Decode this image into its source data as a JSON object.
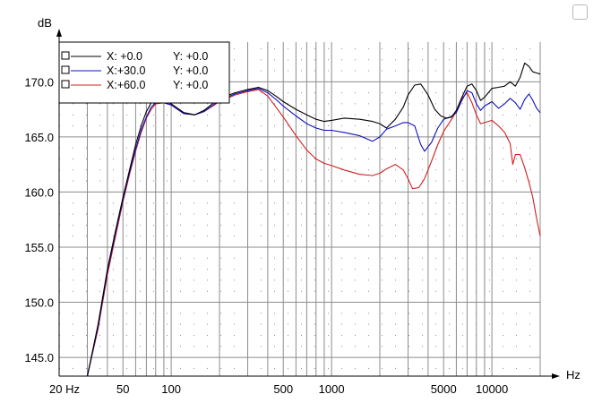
{
  "chart_data": {
    "type": "line",
    "title": "",
    "xlabel": "Hz",
    "ylabel": "dB",
    "x_scale": "log",
    "xlim": [
      20,
      20000
    ],
    "ylim": [
      143.3,
      173.6
    ],
    "grid": true,
    "legend_position": "top-left",
    "x_tick_labels": [
      {
        "value": 20,
        "label": "20 Hz"
      },
      {
        "value": 50,
        "label": "50"
      },
      {
        "value": 100,
        "label": "100"
      },
      {
        "value": 500,
        "label": "500"
      },
      {
        "value": 1000,
        "label": "1000"
      },
      {
        "value": 5000,
        "label": "5000"
      },
      {
        "value": 10000,
        "label": "10000"
      }
    ],
    "y_tick_labels": [
      {
        "value": 145,
        "label": "145.0"
      },
      {
        "value": 150,
        "label": "150.0"
      },
      {
        "value": 155,
        "label": "155.0"
      },
      {
        "value": 160,
        "label": "160.0"
      },
      {
        "value": 165,
        "label": "165.0"
      },
      {
        "value": 170,
        "label": "170.0"
      }
    ],
    "series": [
      {
        "name": "X:  +0.0",
        "y_label": "Y:  +0.0",
        "color": "#000000",
        "points": [
          [
            30,
            143.3
          ],
          [
            35,
            148
          ],
          [
            40,
            153
          ],
          [
            45,
            156.5
          ],
          [
            50,
            159.5
          ],
          [
            55,
            162
          ],
          [
            60,
            164.3
          ],
          [
            65,
            166
          ],
          [
            70,
            167.3
          ],
          [
            75,
            168.1
          ],
          [
            80,
            168.4
          ],
          [
            90,
            168.3
          ],
          [
            100,
            168.0
          ],
          [
            120,
            167.2
          ],
          [
            140,
            167.0
          ],
          [
            160,
            167.4
          ],
          [
            200,
            168.5
          ],
          [
            250,
            169.0
          ],
          [
            300,
            169.3
          ],
          [
            350,
            169.5
          ],
          [
            400,
            169.2
          ],
          [
            450,
            168.7
          ],
          [
            500,
            168.2
          ],
          [
            600,
            167.5
          ],
          [
            700,
            167.0
          ],
          [
            800,
            166.6
          ],
          [
            900,
            166.4
          ],
          [
            1000,
            166.5
          ],
          [
            1200,
            166.7
          ],
          [
            1500,
            166.6
          ],
          [
            1800,
            166.4
          ],
          [
            2000,
            166.2
          ],
          [
            2200,
            165.8
          ],
          [
            2500,
            166.6
          ],
          [
            2800,
            167.7
          ],
          [
            3000,
            168.8
          ],
          [
            3300,
            169.7
          ],
          [
            3600,
            169.8
          ],
          [
            4000,
            168.8
          ],
          [
            4400,
            167.5
          ],
          [
            4800,
            166.9
          ],
          [
            5200,
            166.7
          ],
          [
            5600,
            166.8
          ],
          [
            6000,
            167.4
          ],
          [
            6500,
            168.6
          ],
          [
            7000,
            169.6
          ],
          [
            7500,
            169.8
          ],
          [
            8000,
            169.2
          ],
          [
            8500,
            168.3
          ],
          [
            9000,
            168.6
          ],
          [
            10000,
            169.4
          ],
          [
            11000,
            169.5
          ],
          [
            12000,
            169.6
          ],
          [
            13000,
            170.0
          ],
          [
            14000,
            169.6
          ],
          [
            15000,
            170.4
          ],
          [
            16000,
            171.7
          ],
          [
            17000,
            171.4
          ],
          [
            18000,
            170.9
          ],
          [
            19000,
            170.8
          ],
          [
            20000,
            170.7
          ]
        ]
      },
      {
        "name": "X:+30.0",
        "y_label": "Y:  +0.0",
        "color": "#1010c0",
        "points": [
          [
            30,
            143.3
          ],
          [
            35,
            147.8
          ],
          [
            40,
            152.8
          ],
          [
            45,
            156.3
          ],
          [
            50,
            159.3
          ],
          [
            55,
            161.8
          ],
          [
            60,
            163.9
          ],
          [
            65,
            165.6
          ],
          [
            70,
            166.8
          ],
          [
            75,
            167.7
          ],
          [
            80,
            168.1
          ],
          [
            90,
            168.1
          ],
          [
            100,
            167.9
          ],
          [
            120,
            167.1
          ],
          [
            140,
            167.0
          ],
          [
            160,
            167.3
          ],
          [
            200,
            168.3
          ],
          [
            250,
            168.9
          ],
          [
            300,
            169.2
          ],
          [
            350,
            169.4
          ],
          [
            400,
            169.0
          ],
          [
            450,
            168.4
          ],
          [
            500,
            167.8
          ],
          [
            600,
            166.9
          ],
          [
            700,
            166.2
          ],
          [
            800,
            165.8
          ],
          [
            900,
            165.6
          ],
          [
            1000,
            165.6
          ],
          [
            1200,
            165.4
          ],
          [
            1500,
            165.1
          ],
          [
            1800,
            164.6
          ],
          [
            2000,
            165.0
          ],
          [
            2200,
            165.7
          ],
          [
            2500,
            166.0
          ],
          [
            2800,
            166.3
          ],
          [
            3000,
            166.3
          ],
          [
            3300,
            166.0
          ],
          [
            3600,
            164.3
          ],
          [
            3800,
            163.7
          ],
          [
            4200,
            164.5
          ],
          [
            4600,
            165.8
          ],
          [
            5000,
            166.6
          ],
          [
            5500,
            166.8
          ],
          [
            6000,
            167.2
          ],
          [
            6500,
            168.3
          ],
          [
            7000,
            169.2
          ],
          [
            7500,
            169.0
          ],
          [
            8000,
            168.0
          ],
          [
            8500,
            167.4
          ],
          [
            9000,
            167.8
          ],
          [
            10000,
            168.2
          ],
          [
            11000,
            167.6
          ],
          [
            12000,
            168.0
          ],
          [
            13000,
            168.5
          ],
          [
            14000,
            168.1
          ],
          [
            15000,
            167.5
          ],
          [
            16000,
            168.4
          ],
          [
            17000,
            168.9
          ],
          [
            18000,
            168.3
          ],
          [
            19000,
            167.6
          ],
          [
            20000,
            167.2
          ]
        ]
      },
      {
        "name": "X:+60.0",
        "y_label": "Y:  +0.0",
        "color": "#d02020",
        "points": [
          [
            30,
            143.3
          ],
          [
            35,
            147.6
          ],
          [
            40,
            152.5
          ],
          [
            45,
            156
          ],
          [
            50,
            159.1
          ],
          [
            55,
            161.6
          ],
          [
            60,
            163.7
          ],
          [
            65,
            165.4
          ],
          [
            70,
            166.7
          ],
          [
            75,
            167.5
          ],
          [
            80,
            168.0
          ],
          [
            90,
            168.1
          ],
          [
            100,
            167.9
          ],
          [
            120,
            167.2
          ],
          [
            140,
            167.0
          ],
          [
            160,
            167.3
          ],
          [
            200,
            168.2
          ],
          [
            250,
            168.8
          ],
          [
            300,
            169.1
          ],
          [
            350,
            169.3
          ],
          [
            400,
            168.7
          ],
          [
            450,
            167.7
          ],
          [
            500,
            166.8
          ],
          [
            600,
            165.1
          ],
          [
            700,
            163.8
          ],
          [
            800,
            163.0
          ],
          [
            900,
            162.6
          ],
          [
            1000,
            162.4
          ],
          [
            1200,
            162.0
          ],
          [
            1500,
            161.6
          ],
          [
            1800,
            161.5
          ],
          [
            2000,
            161.7
          ],
          [
            2200,
            162.1
          ],
          [
            2500,
            162.5
          ],
          [
            2800,
            162.0
          ],
          [
            3000,
            161.2
          ],
          [
            3200,
            160.3
          ],
          [
            3500,
            160.4
          ],
          [
            3800,
            161.2
          ],
          [
            4200,
            162.8
          ],
          [
            4600,
            164.3
          ],
          [
            5000,
            165.5
          ],
          [
            5500,
            166.4
          ],
          [
            6000,
            167.3
          ],
          [
            6500,
            168.5
          ],
          [
            7000,
            169.0
          ],
          [
            7500,
            168.1
          ],
          [
            8000,
            167.0
          ],
          [
            8500,
            166.2
          ],
          [
            9000,
            166.3
          ],
          [
            10000,
            166.5
          ],
          [
            11000,
            166.0
          ],
          [
            12000,
            165.4
          ],
          [
            13000,
            164.4
          ],
          [
            13500,
            162.5
          ],
          [
            14000,
            163.4
          ],
          [
            15000,
            163.4
          ],
          [
            16000,
            162.2
          ],
          [
            17000,
            160.9
          ],
          [
            18000,
            159.5
          ],
          [
            19000,
            157.6
          ],
          [
            20000,
            156.0
          ]
        ]
      }
    ]
  }
}
